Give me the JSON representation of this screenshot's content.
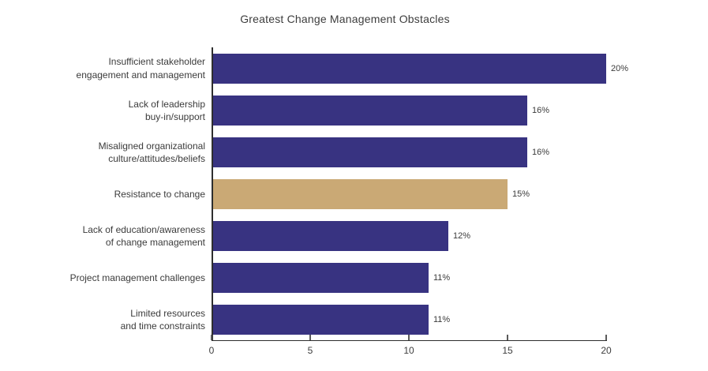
{
  "chart_data": {
    "type": "bar",
    "orientation": "horizontal",
    "title": "Greatest Change Management Obstacles",
    "categories": [
      "Insufficient stakeholder\nengagement and management",
      "Lack of leadership\nbuy-in/support",
      "Misaligned organizational\nculture/attitudes/beliefs",
      "Resistance to change",
      "Lack of education/awareness\nof change management",
      "Project management challenges",
      "Limited resources\nand time constraints"
    ],
    "values": [
      20,
      16,
      16,
      15,
      12,
      11,
      11
    ],
    "value_labels": [
      "20%",
      "16%",
      "16%",
      "15%",
      "12%",
      "11%",
      "11%"
    ],
    "bar_colors": [
      "#383381",
      "#383381",
      "#383381",
      "#caa975",
      "#383381",
      "#383381",
      "#383381"
    ],
    "colors": {
      "primary": "#383381",
      "highlight": "#caa975",
      "axis": "#2e2e2e",
      "text": "#3b3b3b"
    },
    "highlight_index": 3,
    "xlabel": "",
    "ylabel": "",
    "xlim": [
      0,
      20
    ],
    "x_ticks": [
      0,
      5,
      10,
      15,
      20
    ],
    "grid": false,
    "legend": false
  }
}
